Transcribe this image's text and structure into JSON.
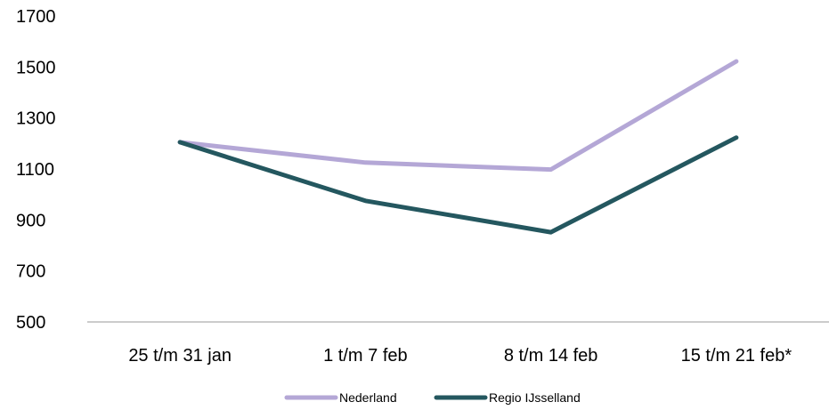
{
  "chart_data": {
    "type": "line",
    "categories": [
      "25 t/m 31 jan",
      "1 t/m 7 feb",
      "8 t/m 14 feb",
      "15 t/m 21 feb*"
    ],
    "series": [
      {
        "name": "Nederland",
        "values": [
          1205,
          1125,
          1098,
          1522
        ],
        "color": "#b4a7d6"
      },
      {
        "name": "Regio IJsselland",
        "values": [
          1205,
          975,
          852,
          1223
        ],
        "color": "#24575f"
      }
    ],
    "yticks": [
      "500",
      "700",
      "900",
      "1100",
      "1300",
      "1500",
      "1700"
    ],
    "ylim": [
      500,
      1700
    ],
    "axis_color": "#999999",
    "grid": false,
    "legend_position": "bottom-center",
    "title": "",
    "xlabel": "",
    "ylabel": ""
  }
}
